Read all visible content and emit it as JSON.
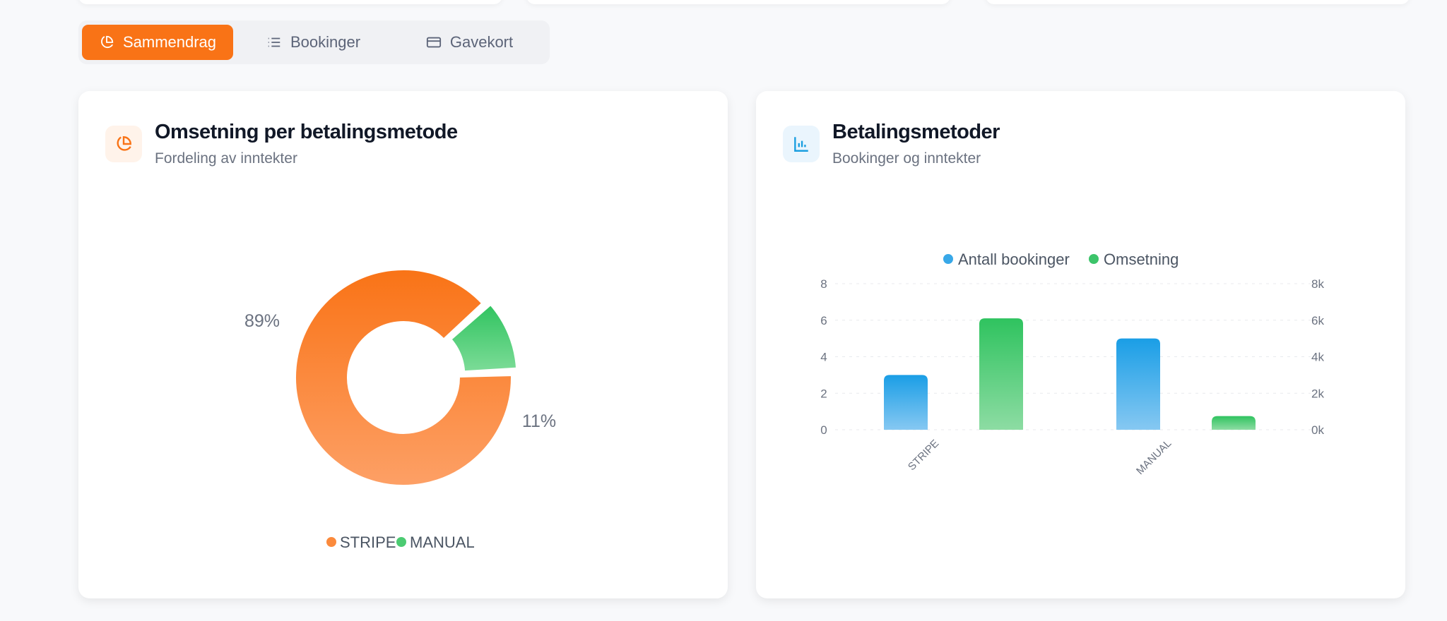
{
  "tabs": [
    {
      "label": "Sammendrag",
      "icon": "pie-chart-icon",
      "active": true
    },
    {
      "label": "Bookinger",
      "icon": "list-icon",
      "active": false
    },
    {
      "label": "Gavekort",
      "icon": "credit-card-icon",
      "active": false
    }
  ],
  "colors": {
    "accent": "#f97316",
    "stripe": "#fb923c",
    "manual": "#4ade80",
    "bookings": "#38a8e8",
    "revenue": "#3cc46a"
  },
  "revenue_card": {
    "title": "Omsetning per betalingsmetode",
    "subtitle": "Fordeling av inntekter",
    "icon": "pie-chart-icon"
  },
  "methods_card": {
    "title": "Betalingsmetoder",
    "subtitle": "Bookinger og inntekter",
    "icon": "bar-chart-icon"
  },
  "chart_data": [
    {
      "type": "pie",
      "variant": "donut",
      "categories": [
        "STRIPE",
        "MANUAL"
      ],
      "values": [
        89,
        11
      ],
      "data_labels": [
        "89%",
        "11%"
      ],
      "legend": [
        "STRIPE",
        "MANUAL"
      ],
      "legend_position": "bottom"
    },
    {
      "type": "bar",
      "categories": [
        "STRIPE",
        "MANUAL"
      ],
      "series": [
        {
          "name": "Antall bookinger",
          "values": [
            3,
            5
          ],
          "axis": "left"
        },
        {
          "name": "Omsetning",
          "values": [
            6100,
            750
          ],
          "axis": "right"
        }
      ],
      "ylim_left": [
        0,
        8
      ],
      "yticks_left": [
        "0",
        "2",
        "4",
        "6",
        "8"
      ],
      "ylim_right": [
        0,
        8000
      ],
      "yticks_right": [
        "0k",
        "2k",
        "4k",
        "6k",
        "8k"
      ],
      "grid": true,
      "legend_position": "top"
    }
  ]
}
